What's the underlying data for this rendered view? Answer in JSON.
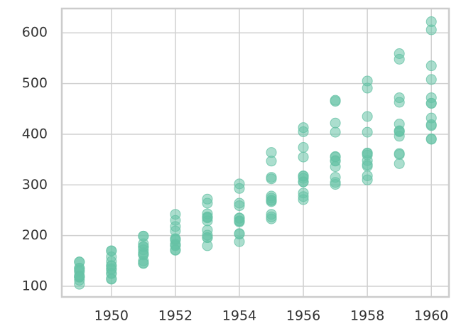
{
  "chart_data": {
    "type": "scatter",
    "x": [
      1949,
      1949,
      1949,
      1949,
      1949,
      1949,
      1949,
      1949,
      1949,
      1949,
      1949,
      1949,
      1950,
      1950,
      1950,
      1950,
      1950,
      1950,
      1950,
      1950,
      1950,
      1950,
      1950,
      1950,
      1951,
      1951,
      1951,
      1951,
      1951,
      1951,
      1951,
      1951,
      1951,
      1951,
      1951,
      1951,
      1952,
      1952,
      1952,
      1952,
      1952,
      1952,
      1952,
      1952,
      1952,
      1952,
      1952,
      1952,
      1953,
      1953,
      1953,
      1953,
      1953,
      1953,
      1953,
      1953,
      1953,
      1953,
      1953,
      1953,
      1954,
      1954,
      1954,
      1954,
      1954,
      1954,
      1954,
      1954,
      1954,
      1954,
      1954,
      1954,
      1955,
      1955,
      1955,
      1955,
      1955,
      1955,
      1955,
      1955,
      1955,
      1955,
      1955,
      1955,
      1956,
      1956,
      1956,
      1956,
      1956,
      1956,
      1956,
      1956,
      1956,
      1956,
      1956,
      1956,
      1957,
      1957,
      1957,
      1957,
      1957,
      1957,
      1957,
      1957,
      1957,
      1957,
      1957,
      1957,
      1958,
      1958,
      1958,
      1958,
      1958,
      1958,
      1958,
      1958,
      1958,
      1958,
      1958,
      1958,
      1959,
      1959,
      1959,
      1959,
      1959,
      1959,
      1959,
      1959,
      1959,
      1959,
      1959,
      1959,
      1960,
      1960,
      1960,
      1960,
      1960,
      1960,
      1960,
      1960,
      1960,
      1960,
      1960,
      1960
    ],
    "values": [
      112,
      118,
      132,
      129,
      121,
      135,
      148,
      148,
      136,
      119,
      104,
      118,
      115,
      126,
      141,
      135,
      125,
      149,
      170,
      170,
      158,
      133,
      114,
      140,
      145,
      150,
      178,
      163,
      172,
      178,
      199,
      199,
      184,
      162,
      146,
      166,
      171,
      180,
      193,
      181,
      183,
      218,
      230,
      242,
      209,
      191,
      172,
      194,
      196,
      196,
      236,
      235,
      229,
      243,
      264,
      272,
      237,
      211,
      180,
      201,
      204,
      188,
      235,
      227,
      234,
      264,
      302,
      293,
      259,
      229,
      203,
      229,
      242,
      233,
      267,
      269,
      270,
      315,
      364,
      347,
      312,
      274,
      237,
      278,
      284,
      277,
      317,
      313,
      318,
      374,
      413,
      405,
      355,
      306,
      271,
      306,
      315,
      301,
      356,
      348,
      355,
      422,
      465,
      467,
      404,
      347,
      305,
      336,
      340,
      318,
      362,
      348,
      363,
      435,
      491,
      505,
      404,
      359,
      310,
      337,
      360,
      342,
      406,
      396,
      420,
      472,
      548,
      559,
      463,
      407,
      362,
      405,
      417,
      391,
      419,
      461,
      472,
      535,
      622,
      606,
      508,
      461,
      390,
      432
    ],
    "color": "#66c2a5",
    "xlim": [
      1948.45,
      1960.55
    ],
    "xticks": [
      1950,
      1952,
      1954,
      1956,
      1958,
      1960
    ],
    "ylim": [
      79,
      648
    ],
    "yticks": [
      100,
      200,
      300,
      400,
      500,
      600
    ],
    "grid": true
  }
}
